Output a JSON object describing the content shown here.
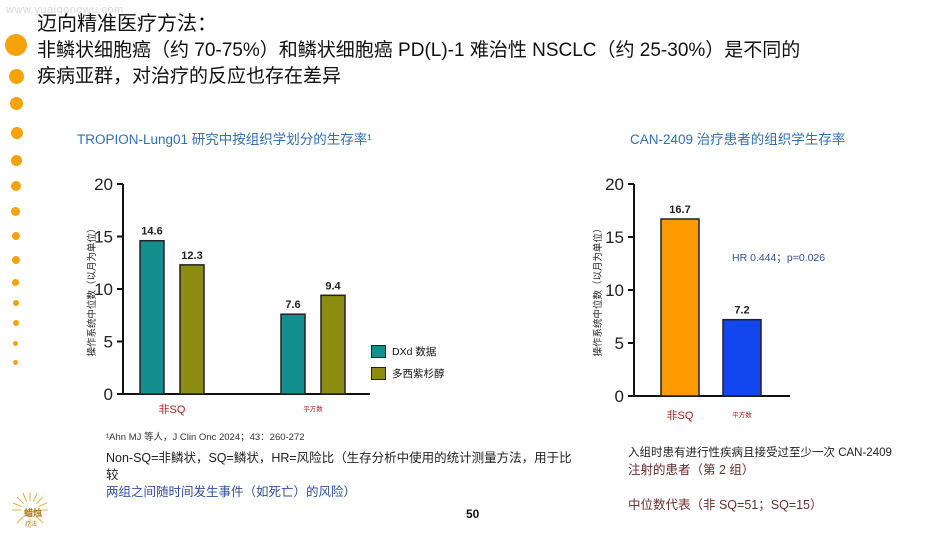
{
  "watermark": "www.yuaigongwu.com",
  "title": {
    "line1": "迈向精准医疗方法：",
    "line2": "非鳞状细胞癌（约 70-75%）和鳞状细胞癌 PD(L)-1 难治性 NSCLC（约 25-30%）是不同的",
    "line3": "疾病亚群，对治疗的反应也存在差异"
  },
  "colors": {
    "accent_orange": "#f5a20b",
    "title_blue": "#2f6fb8",
    "dxd_teal": "#138f8f",
    "docetaxel_olive": "#8c8c12",
    "can_orange": "#ff9a00",
    "can_blue": "#1246ee"
  },
  "chart_data": [
    {
      "type": "bar",
      "title": "TROPION-Lung01 研究中按组织学划分的生存率¹",
      "ylabel": "操作系统中位数（以月为单位）",
      "ylim": [
        0,
        20
      ],
      "yticks": [
        "0",
        "5",
        "10",
        "15",
        "20"
      ],
      "categories": [
        "非SQ",
        "平方数"
      ],
      "series": [
        {
          "name": "DXd 数据",
          "color": "#138f8f",
          "values": [
            14.6,
            7.6
          ]
        },
        {
          "name": "多西紫杉醇",
          "color": "#8c8c12",
          "values": [
            12.3,
            9.4
          ]
        }
      ],
      "data_labels": [
        [
          "14.6",
          "7.6"
        ],
        [
          "12.3",
          "9.4"
        ]
      ],
      "legend_position": "right"
    },
    {
      "type": "bar",
      "title": "CAN-2409 治疗患者的组织学生存率",
      "ylabel": "操作系统中位数（以月为单位）",
      "ylim": [
        0,
        20
      ],
      "yticks": [
        "0",
        "5",
        "10",
        "15",
        "20"
      ],
      "categories": [
        "非SQ",
        "平方数"
      ],
      "values": [
        16.7,
        7.2
      ],
      "data_labels": [
        "16.7",
        "7.2"
      ],
      "bar_colors": [
        "#ff9a00",
        "#1246ee"
      ],
      "annotation": "HR 0.444；p=0.026"
    }
  ],
  "footnote": "¹Ahn MJ 等人，J Clin Onc 2024；43：260-272",
  "abbreviations": {
    "line1": "Non-SQ=非鳞状，SQ=鳞状，HR=风险比（生存分析中使用的统计测量方法，用于比较",
    "line2": "两组之间随时间发生事件（如死亡）的风险）"
  },
  "right_note": {
    "line1": "入组时患有进行性疾病且接受过至少一次 CAN-2409",
    "line2": "注射的患者（第 2 组）"
  },
  "median_note": "中位数代表（非 SQ=51；SQ=15）",
  "page_number": "50",
  "logo": {
    "name": "蜡烛",
    "sub": "疗法"
  }
}
